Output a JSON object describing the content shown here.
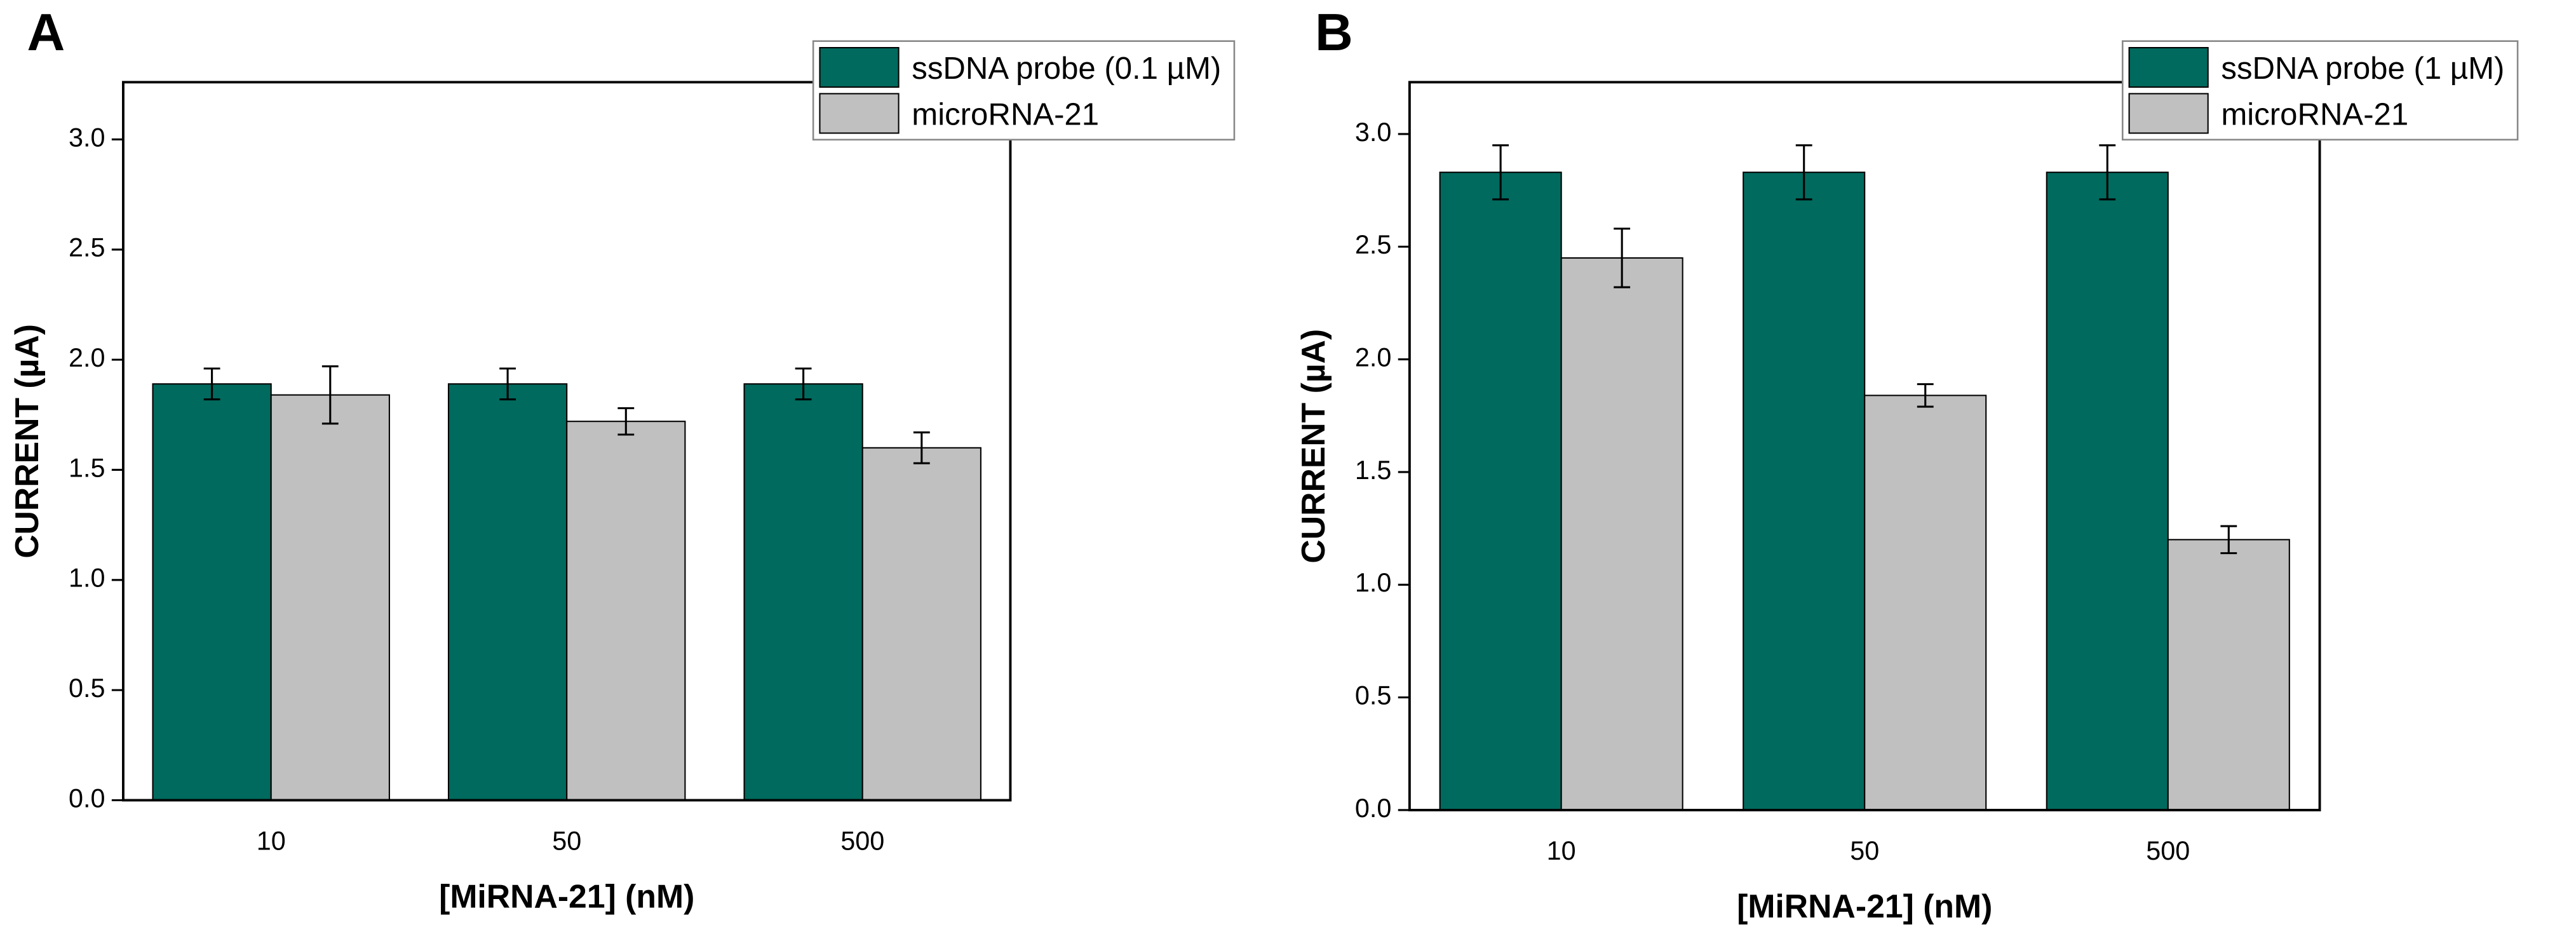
{
  "chart_data": [
    {
      "type": "bar",
      "panel_label": "A",
      "xlabel": "[MiRNA-21] (nM)",
      "ylabel": "CURRENT (µA)",
      "categories": [
        "10",
        "50",
        "500"
      ],
      "series": [
        {
          "name": "ssDNA probe (0.1 µM)",
          "color": "#006a5e",
          "values": [
            1.89,
            1.89,
            1.89
          ],
          "errors": [
            0.07,
            0.07,
            0.07
          ]
        },
        {
          "name": "microRNA-21",
          "color": "#c0c0c0",
          "values": [
            1.84,
            1.72,
            1.6
          ],
          "errors": [
            0.13,
            0.06,
            0.07
          ]
        }
      ],
      "ylim": [
        0,
        3.26
      ],
      "yticks": [
        {
          "value": 0,
          "label": "0.0"
        },
        {
          "value": 0.5,
          "label": "0.5"
        },
        {
          "value": 1,
          "label": "1.0"
        },
        {
          "value": 1.5,
          "label": "1.5"
        },
        {
          "value": 2,
          "label": "2.0"
        },
        {
          "value": 2.5,
          "label": "2.5"
        },
        {
          "value": 3,
          "label": "3.0"
        }
      ],
      "legend": "top right"
    },
    {
      "type": "bar",
      "panel_label": "B",
      "xlabel": "[MiRNA-21] (nM)",
      "ylabel": "CURRENT (µA)",
      "categories": [
        "10",
        "50",
        "500"
      ],
      "series": [
        {
          "name": "ssDNA probe (1 µM)",
          "color": "#006a5e",
          "values": [
            2.83,
            2.83,
            2.83
          ],
          "errors": [
            0.12,
            0.12,
            0.12
          ]
        },
        {
          "name": "microRNA-21",
          "color": "#c0c0c0",
          "values": [
            2.45,
            1.84,
            1.2
          ],
          "errors": [
            0.13,
            0.05,
            0.06
          ]
        }
      ],
      "ylim": [
        0,
        3.23
      ],
      "yticks": [
        {
          "value": 0,
          "label": "0.0"
        },
        {
          "value": 0.5,
          "label": "0.5"
        },
        {
          "value": 1,
          "label": "1.0"
        },
        {
          "value": 1.5,
          "label": "1.5"
        },
        {
          "value": 2,
          "label": "2.0"
        },
        {
          "value": 2.5,
          "label": "2.5"
        },
        {
          "value": 3,
          "label": "3.0"
        }
      ],
      "legend": "top right"
    }
  ]
}
